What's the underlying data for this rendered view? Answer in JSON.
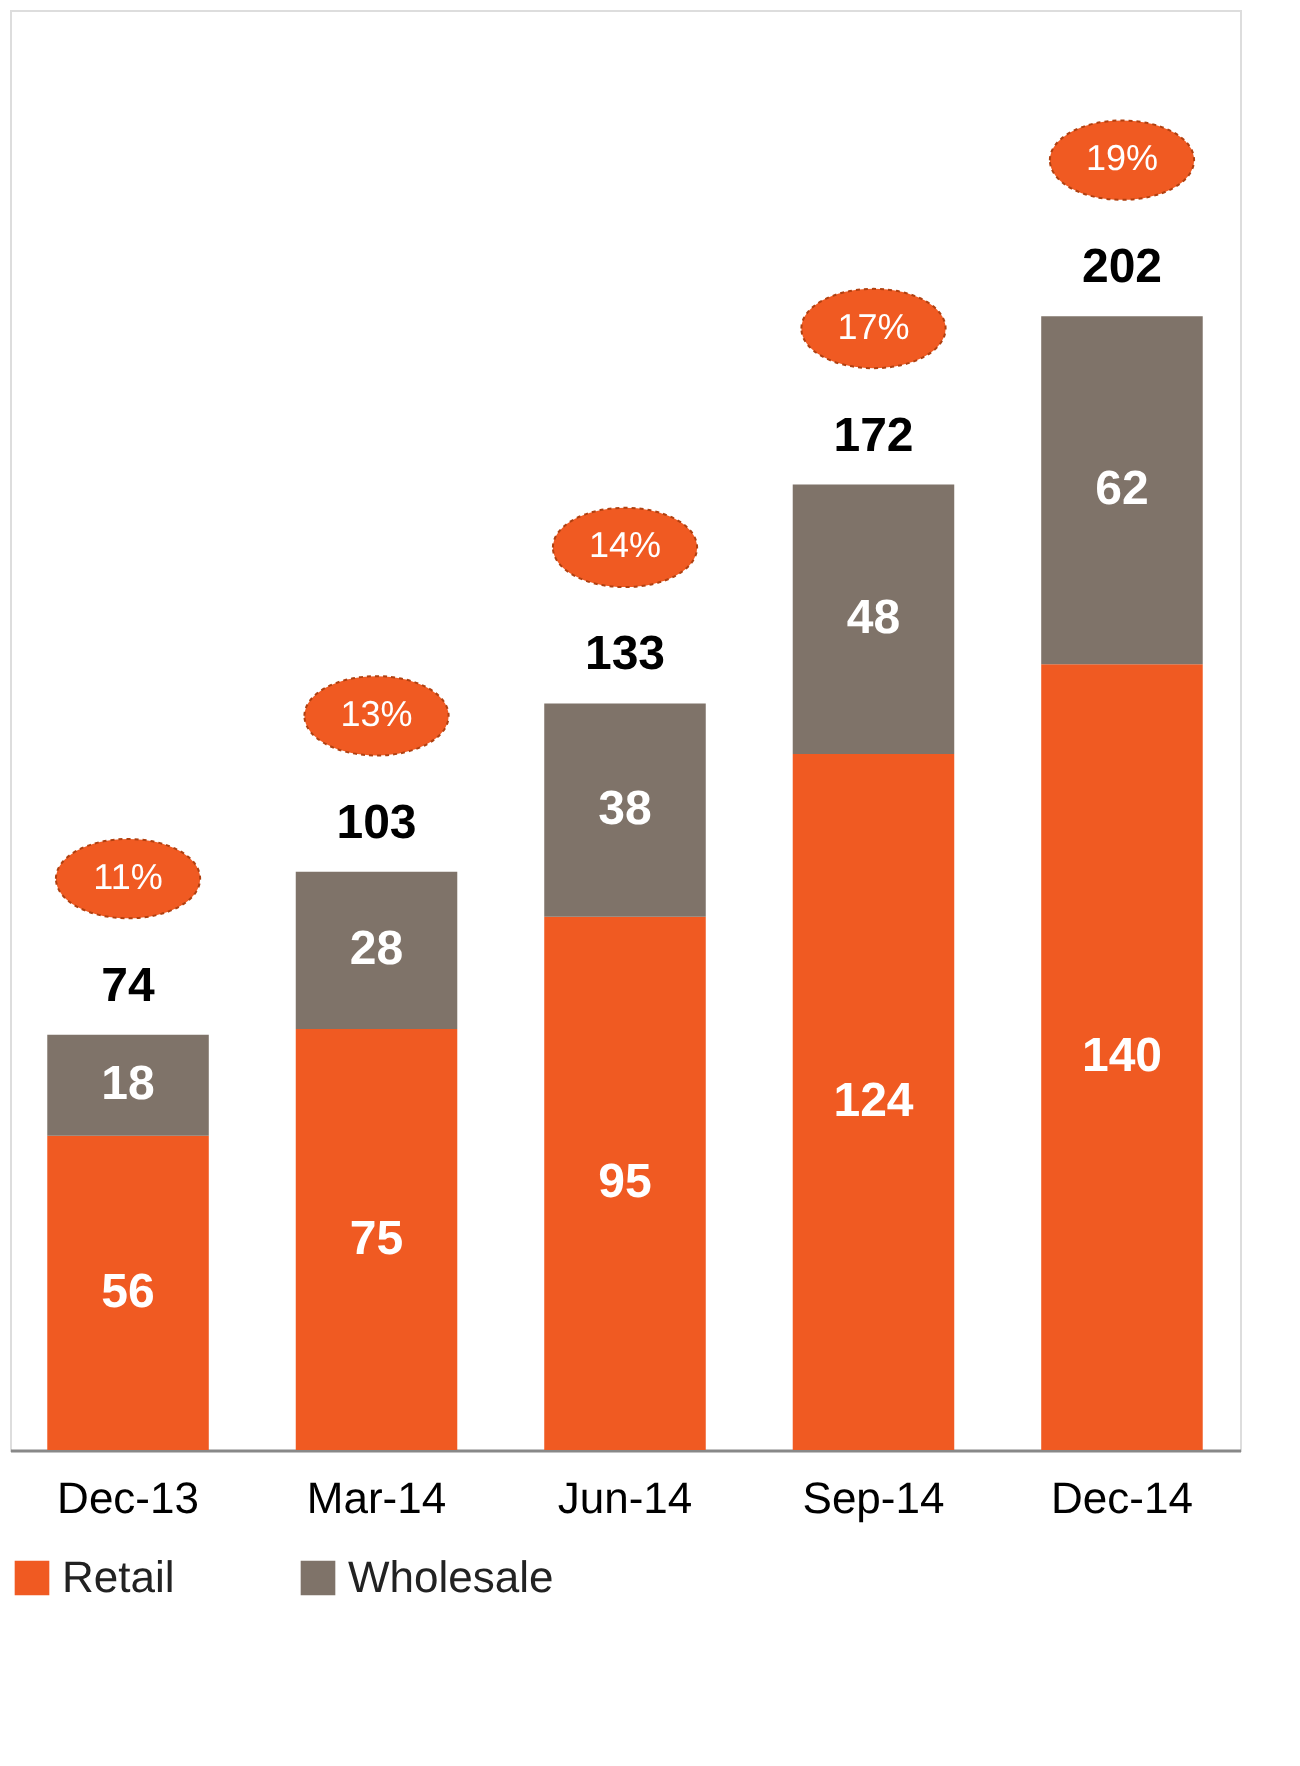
{
  "chart_data": {
    "type": "bar",
    "stacked": true,
    "categories": [
      "Dec-13",
      "Mar-14",
      "Jun-14",
      "Sep-14",
      "Dec-14"
    ],
    "series": [
      {
        "name": "Retail",
        "color": "#f05a22",
        "values": [
          56,
          75,
          95,
          124,
          140
        ]
      },
      {
        "name": "Wholesale",
        "color": "#7f7369",
        "values": [
          18,
          28,
          38,
          48,
          62
        ]
      }
    ],
    "totals": [
      "74",
      "103",
      "133",
      "172",
      "202"
    ],
    "annotations": [
      "11%",
      "13%",
      "14%",
      "17%",
      "19%"
    ],
    "data_labels": true,
    "legend": "bottom"
  }
}
